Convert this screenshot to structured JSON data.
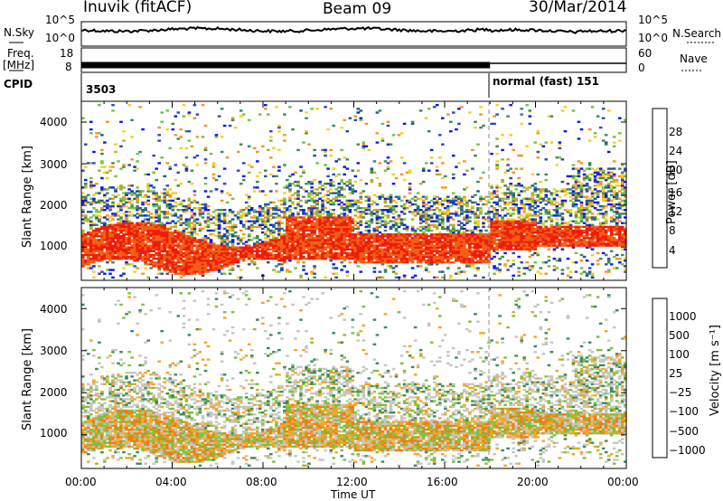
{
  "header": {
    "station": "Inuvik (fitACF)",
    "beam": "Beam 09",
    "date": "30/Mar/2014"
  },
  "panels": {
    "nsky_label": "N.Sky",
    "nsearch_label": "N.Search",
    "freq_label_1": "Freq.",
    "freq_label_2": "[MHz]",
    "nave_label": "Nave",
    "cpid_label": "CPID",
    "left_top_ticks": [
      "10^5",
      "10^0"
    ],
    "right_top_ticks": [
      "10^5",
      "10^0"
    ],
    "freq_ticks": [
      "18",
      "8"
    ],
    "nave_ticks": [
      "60",
      "0"
    ],
    "cpid_value_1": "3503",
    "cpid_value_2": "normal (fast) 151",
    "cpid_switch_time": 18.0
  },
  "colors": {
    "power_scale": [
      "#0a1fe6",
      "#2f4fa8",
      "#3c8a5a",
      "#7ac243",
      "#f4d025",
      "#f59522",
      "#f25f13",
      "#ee1c0c"
    ],
    "velocity_scale": [
      "#1f3fbf",
      "#285a9c",
      "#3e8b5d",
      "#7cc23e",
      "#c8c6bf",
      "#f5a623",
      "#f57a12",
      "#e8200c"
    ]
  },
  "chart_data": [
    {
      "type": "heatmap",
      "title": "Power",
      "ylabel": "Slant Range [km]",
      "xlabel": "",
      "ylim": [
        200,
        4500
      ],
      "xlim": [
        0,
        24
      ],
      "yticks": [
        "1000",
        "2000",
        "3000",
        "4000"
      ],
      "xticks": [],
      "colorbar_label": "Power [dB]",
      "colorbar_ticks": [
        "28",
        "24",
        "20",
        "16",
        "12",
        "8",
        "4"
      ],
      "colorbar_range": [
        0,
        30
      ]
    },
    {
      "type": "heatmap",
      "title": "Velocity",
      "ylabel": "Slant Range [km]",
      "xlabel": "Time UT",
      "ylim": [
        200,
        4500
      ],
      "xlim": [
        0,
        24
      ],
      "yticks": [
        "1000",
        "2000",
        "3000",
        "4000"
      ],
      "xticks": [
        "00:00",
        "04:00",
        "08:00",
        "12:00",
        "16:00",
        "20:00",
        "00:00"
      ],
      "colorbar_label": "Velocity [m s⁻¹]",
      "colorbar_ticks": [
        "1000",
        "500",
        "100",
        "25",
        "−25",
        "−100",
        "−500",
        "−1000"
      ],
      "colorbar_range": [
        -1000,
        1000
      ]
    }
  ]
}
